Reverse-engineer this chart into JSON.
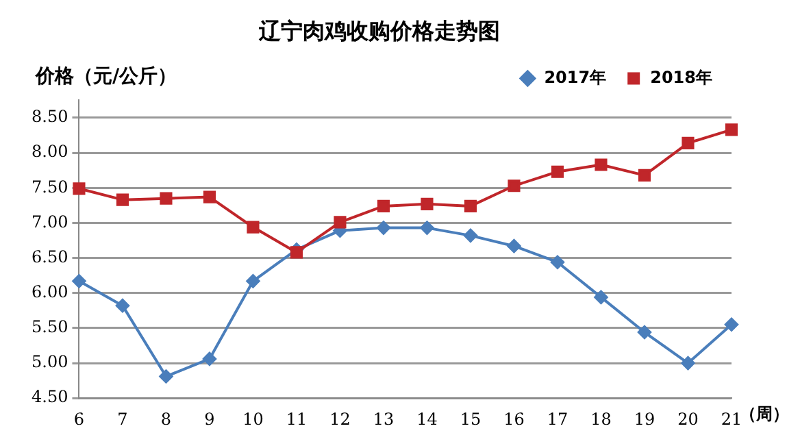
{
  "chart_data": {
    "type": "line",
    "title": "辽宁肉鸡收购价格走势图",
    "ylabel": "价格（元/公斤）",
    "xlabel": "（周）",
    "categories": [
      "6",
      "7",
      "8",
      "9",
      "10",
      "11",
      "12",
      "13",
      "14",
      "15",
      "16",
      "17",
      "18",
      "19",
      "20",
      "21"
    ],
    "series": [
      {
        "name": "2017年",
        "color": "#4a7ebb",
        "marker": "diamond",
        "values": [
          6.17,
          5.82,
          4.81,
          5.06,
          6.17,
          6.62,
          6.89,
          6.93,
          6.93,
          6.82,
          6.67,
          6.44,
          5.94,
          5.44,
          5.0,
          5.55
        ]
      },
      {
        "name": "2018年",
        "color": "#c0262a",
        "marker": "square",
        "values": [
          7.49,
          7.33,
          7.35,
          7.37,
          6.94,
          6.58,
          7.01,
          7.24,
          7.27,
          7.24,
          7.53,
          7.73,
          7.83,
          7.68,
          8.14,
          8.33
        ]
      }
    ],
    "ylim": [
      4.5,
      8.75
    ],
    "yticks": [
      {
        "value": 4.5,
        "label": "4.50"
      },
      {
        "value": 5,
        "label": "5.00"
      },
      {
        "value": 5.5,
        "label": "5.50"
      },
      {
        "value": 6,
        "label": "6.00"
      },
      {
        "value": 6.5,
        "label": "6.50"
      },
      {
        "value": 7,
        "label": "7.00"
      },
      {
        "value": 7.5,
        "label": "7.50"
      },
      {
        "value": 8,
        "label": "8.00"
      },
      {
        "value": 8.5,
        "label": "8.50"
      }
    ],
    "grid": "y",
    "legend": "top right",
    "line_style": "solid"
  }
}
